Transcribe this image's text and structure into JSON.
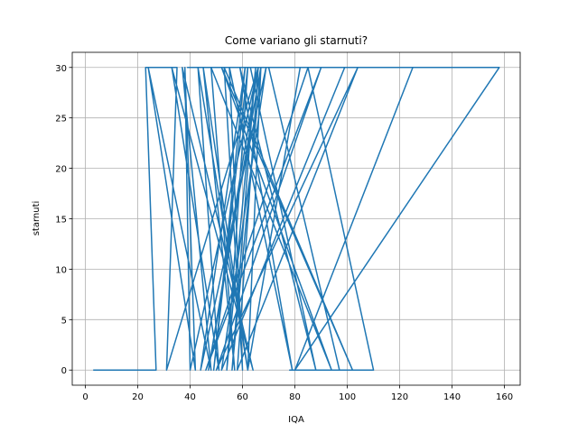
{
  "chart_data": {
    "type": "line",
    "title": "Come variano gli starnuti?",
    "xlabel": "IQA",
    "ylabel": "starnuti",
    "xlim": [
      -5,
      166
    ],
    "ylim": [
      -1.5,
      31.5
    ],
    "xticks": [
      0,
      20,
      40,
      60,
      80,
      100,
      120,
      140,
      160
    ],
    "yticks": [
      0,
      5,
      10,
      15,
      20,
      25,
      30
    ],
    "grid": true,
    "series": [
      {
        "color": "#1f77b4",
        "x": [
          3,
          27,
          23,
          35,
          31,
          66,
          40,
          38,
          42,
          24,
          48,
          37,
          64,
          33,
          51,
          43,
          62,
          45,
          57,
          48,
          94,
          52,
          102,
          53,
          60,
          55,
          79,
          59,
          88,
          63,
          70,
          97,
          78,
          110,
          85,
          46,
          90,
          50,
          104,
          58,
          66,
          47,
          67,
          56,
          65,
          54,
          62,
          49,
          61,
          44,
          69,
          52,
          99,
          39,
          125,
          80,
          158,
          96,
          92,
          53,
          67,
          62,
          82
        ],
        "y": [
          0,
          0,
          30,
          30,
          0,
          30,
          0,
          30,
          0,
          30,
          0,
          30,
          0,
          30,
          0,
          30,
          0,
          30,
          0,
          30,
          0,
          30,
          0,
          30,
          0,
          30,
          0,
          30,
          0,
          30,
          30,
          0,
          0,
          0,
          30,
          0,
          30,
          0,
          30,
          0,
          30,
          0,
          30,
          0,
          30,
          0,
          30,
          0,
          30,
          0,
          30,
          0,
          30,
          30,
          30,
          0,
          30,
          30,
          30,
          30,
          30,
          0,
          30
        ]
      }
    ]
  }
}
